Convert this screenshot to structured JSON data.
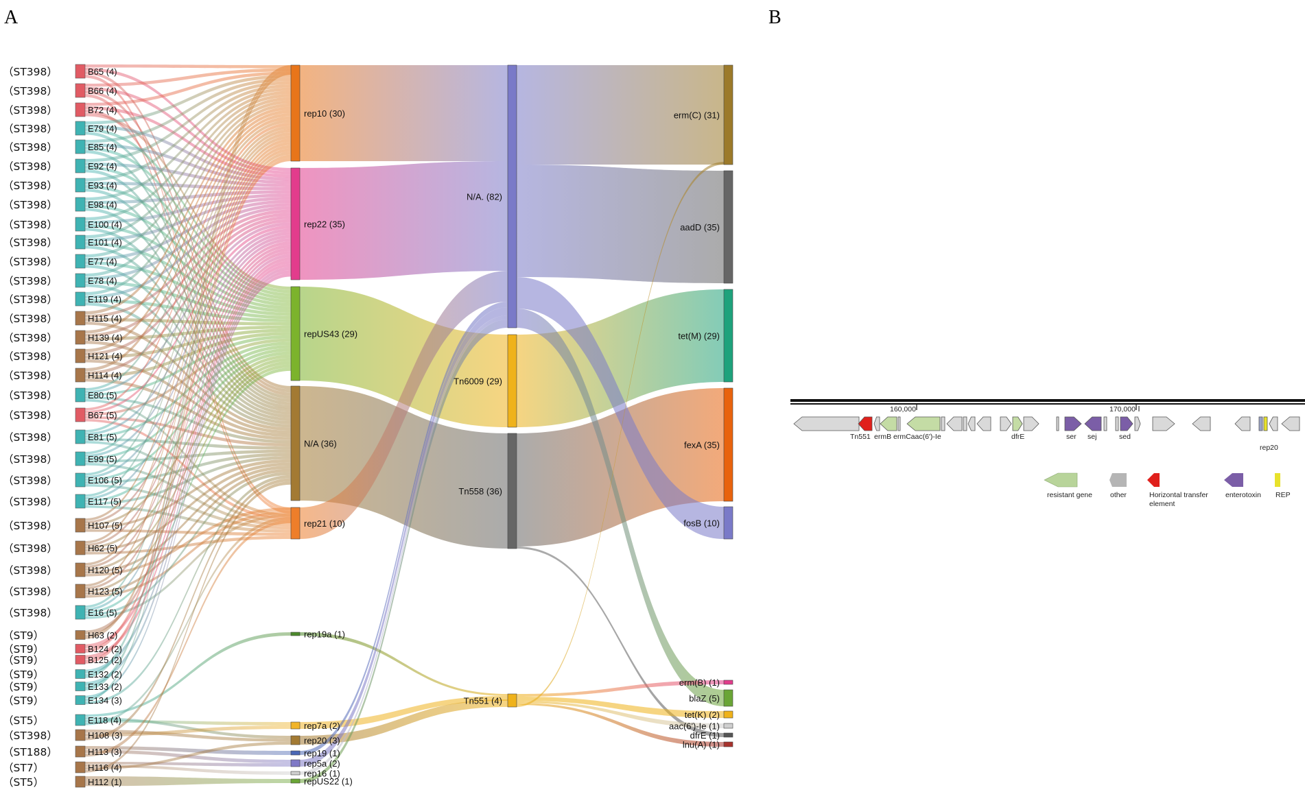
{
  "panels": {
    "a": "A",
    "b": "B"
  },
  "colors": {
    "B": "#e15b64",
    "E": "#3fb3b3",
    "H": "#a7764a",
    "rep10": "#e8751a",
    "rep22": "#e23c8c",
    "repUS43": "#7cb32c",
    "NA": "#a37a33",
    "rep21": "#ee7e2a",
    "rep19a": "#4c8a2c",
    "rep7a": "#f0b42a",
    "rep20": "#a37a33",
    "rep19": "#4a67b5",
    "rep5a": "#7f79c6",
    "rep16": "#cfcfcf",
    "repUS22": "#6aa536",
    "NA82": "#7a7ac8",
    "Tn6009": "#efb21a",
    "Tn558": "#666666",
    "Tn551": "#efb21a",
    "ermC": "#9c7a2a",
    "aadD": "#666666",
    "tetM": "#1ea27c",
    "fexA": "#e8630d",
    "fosB": "#7a7ac8",
    "ermB": "#e23c8c",
    "blaZ": "#6aa536",
    "tetK": "#efb21a",
    "aac": "#cfcfcf",
    "dfrE": "#555555",
    "lnuA": "#a8322d"
  },
  "strains": [
    {
      "st": "（ST398）",
      "id": "B65 (4)",
      "g": "B"
    },
    {
      "st": "（ST398）",
      "id": "B66 (4)",
      "g": "B"
    },
    {
      "st": "（ST398）",
      "id": "B72 (4)",
      "g": "B"
    },
    {
      "st": "（ST398）",
      "id": "E79 (4)",
      "g": "E"
    },
    {
      "st": "（ST398）",
      "id": "E85 (4)",
      "g": "E"
    },
    {
      "st": "（ST398）",
      "id": "E92 (4)",
      "g": "E"
    },
    {
      "st": "（ST398）",
      "id": "E93 (4)",
      "g": "E"
    },
    {
      "st": "（ST398）",
      "id": "E98 (4)",
      "g": "E"
    },
    {
      "st": "（ST398）",
      "id": "E100 (4)",
      "g": "E"
    },
    {
      "st": "（ST398）",
      "id": "E101 (4)",
      "g": "E"
    },
    {
      "st": "（ST398）",
      "id": "E77 (4)",
      "g": "E"
    },
    {
      "st": "（ST398）",
      "id": "E78 (4)",
      "g": "E"
    },
    {
      "st": "（ST398）",
      "id": "E119 (4)",
      "g": "E"
    },
    {
      "st": "（ST398）",
      "id": "H115 (4)",
      "g": "H"
    },
    {
      "st": "（ST398）",
      "id": "H139 (4)",
      "g": "H"
    },
    {
      "st": "（ST398）",
      "id": "H121 (4)",
      "g": "H"
    },
    {
      "st": "（ST398）",
      "id": "H114 (4)",
      "g": "H"
    },
    {
      "st": "（ST398）",
      "id": "E80 (5)",
      "g": "E"
    },
    {
      "st": "（ST398）",
      "id": "B67 (5)",
      "g": "B"
    },
    {
      "st": "（ST398）",
      "id": "E81 (5)",
      "g": "E"
    },
    {
      "st": "（ST398）",
      "id": "E99 (5)",
      "g": "E"
    },
    {
      "st": "（ST398）",
      "id": "E106 (5)",
      "g": "E"
    },
    {
      "st": "（ST398）",
      "id": "E117 (5)",
      "g": "E"
    },
    {
      "st": "（ST398）",
      "id": "H107 (5)",
      "g": "H"
    },
    {
      "st": "（ST398）",
      "id": "H62 (5)",
      "g": "H"
    },
    {
      "st": "（ST398）",
      "id": "H120 (5)",
      "g": "H"
    },
    {
      "st": "（ST398）",
      "id": "H123 (5)",
      "g": "H"
    },
    {
      "st": "（ST398）",
      "id": "E16 (5)",
      "g": "E"
    },
    {
      "st": "（ST9）",
      "id": "H63 (2)",
      "g": "H"
    },
    {
      "st": "（ST9）",
      "id": "B124 (2)",
      "g": "B"
    },
    {
      "st": "（ST9）",
      "id": "B125 (2)",
      "g": "B"
    },
    {
      "st": "（ST9）",
      "id": "E132 (2)",
      "g": "E"
    },
    {
      "st": "（ST9）",
      "id": "E133 (2)",
      "g": "E"
    },
    {
      "st": "（ST9）",
      "id": "E134 (3)",
      "g": "E"
    },
    {
      "st": "（ST5）",
      "id": "E118 (4)",
      "g": "E"
    },
    {
      "st": "（ST398）",
      "id": "H108 (3)",
      "g": "H"
    },
    {
      "st": "（ST188）",
      "id": "H113 (3)",
      "g": "H"
    },
    {
      "st": "（ST7）",
      "id": "H116 (4)",
      "g": "H"
    },
    {
      "st": "（ST5）",
      "id": "H112 (1)",
      "g": "H"
    }
  ],
  "replicons": [
    {
      "key": "rep10",
      "label": "rep10 (30)"
    },
    {
      "key": "rep22",
      "label": "rep22 (35)"
    },
    {
      "key": "repUS43",
      "label": "repUS43 (29)"
    },
    {
      "key": "NA",
      "label": "N/A (36)"
    },
    {
      "key": "rep21",
      "label": "rep21 (10)"
    },
    {
      "key": "rep19a",
      "label": "rep19a (1)"
    },
    {
      "key": "rep7a",
      "label": "rep7a (2)"
    },
    {
      "key": "rep20",
      "label": "rep20 (3)"
    },
    {
      "key": "rep19",
      "label": "rep19 (1)"
    },
    {
      "key": "rep5a",
      "label": "rep5a (2)"
    },
    {
      "key": "rep16",
      "label": "rep16 (1)"
    },
    {
      "key": "repUS22",
      "label": "repUS22 (1)"
    }
  ],
  "transposons": [
    {
      "key": "NA82",
      "label": "N/A. (82)"
    },
    {
      "key": "Tn6009",
      "label": "Tn6009 (29)"
    },
    {
      "key": "Tn558",
      "label": "Tn558 (36)"
    },
    {
      "key": "Tn551",
      "label": "Tn551 (4)"
    }
  ],
  "genes": [
    {
      "key": "ermC",
      "label": "erm(C) (31)"
    },
    {
      "key": "aadD",
      "label": "aadD (35)"
    },
    {
      "key": "tetM",
      "label": "tet(M) (29)"
    },
    {
      "key": "fexA",
      "label": "fexA (35)"
    },
    {
      "key": "fosB",
      "label": "fosB (10)"
    },
    {
      "key": "ermB",
      "label": "erm(B) (1)"
    },
    {
      "key": "blaZ",
      "label": "blaZ (5)"
    },
    {
      "key": "tetK",
      "label": "tet(K) (2)"
    },
    {
      "key": "aac",
      "label": "aac(6')-Ie (1)"
    },
    {
      "key": "dfrE",
      "label": "dfrE (1)"
    },
    {
      "key": "lnuA",
      "label": "lnu(A) (1)"
    }
  ],
  "links_rep_tn": [
    {
      "from": "rep10",
      "to": "NA82"
    },
    {
      "from": "rep22",
      "to": "NA82"
    },
    {
      "from": "repUS43",
      "to": "Tn6009"
    },
    {
      "from": "NA",
      "to": "Tn558"
    },
    {
      "from": "rep21",
      "to": "NA82"
    },
    {
      "from": "rep19a",
      "to": "Tn551"
    },
    {
      "from": "rep7a",
      "to": "Tn551"
    },
    {
      "from": "rep20",
      "to": "Tn551"
    },
    {
      "from": "rep19",
      "to": "NA82"
    },
    {
      "from": "rep5a",
      "to": "NA82"
    },
    {
      "from": "rep16",
      "to": "NA82"
    },
    {
      "from": "repUS22",
      "to": "NA82"
    }
  ],
  "links_tn_gene": [
    {
      "from": "NA82",
      "to": "ermC"
    },
    {
      "from": "NA82",
      "to": "aadD"
    },
    {
      "from": "NA82",
      "to": "fosB"
    },
    {
      "from": "NA82",
      "to": "blaZ"
    },
    {
      "from": "Tn6009",
      "to": "tetM"
    },
    {
      "from": "Tn558",
      "to": "fexA"
    },
    {
      "from": "Tn558",
      "to": "dfrE"
    },
    {
      "from": "Tn551",
      "to": "ermB"
    },
    {
      "from": "Tn551",
      "to": "tetK"
    },
    {
      "from": "Tn551",
      "to": "aac"
    },
    {
      "from": "Tn551",
      "to": "lnuA"
    },
    {
      "from": "Tn551",
      "to": "ermC"
    }
  ],
  "genome": {
    "scale_labels": [
      "160,000",
      "170,000"
    ],
    "gene_labels": [
      "Tn551",
      "ermB",
      "ermCaac(6')-Ie",
      "dfrE",
      "ser",
      "sej",
      "sed",
      "rep20"
    ],
    "legend": [
      {
        "label": "resistant gene",
        "color": "#b8d49a"
      },
      {
        "label": "other",
        "color": "#b5b5b5"
      },
      {
        "label": "Horizontal transfer element",
        "label2": "element",
        "color": "#e0201c"
      },
      {
        "label": "enterotoxin",
        "color": "#7b5ea7"
      },
      {
        "label": "REP",
        "color": "#e8e22c"
      }
    ]
  }
}
